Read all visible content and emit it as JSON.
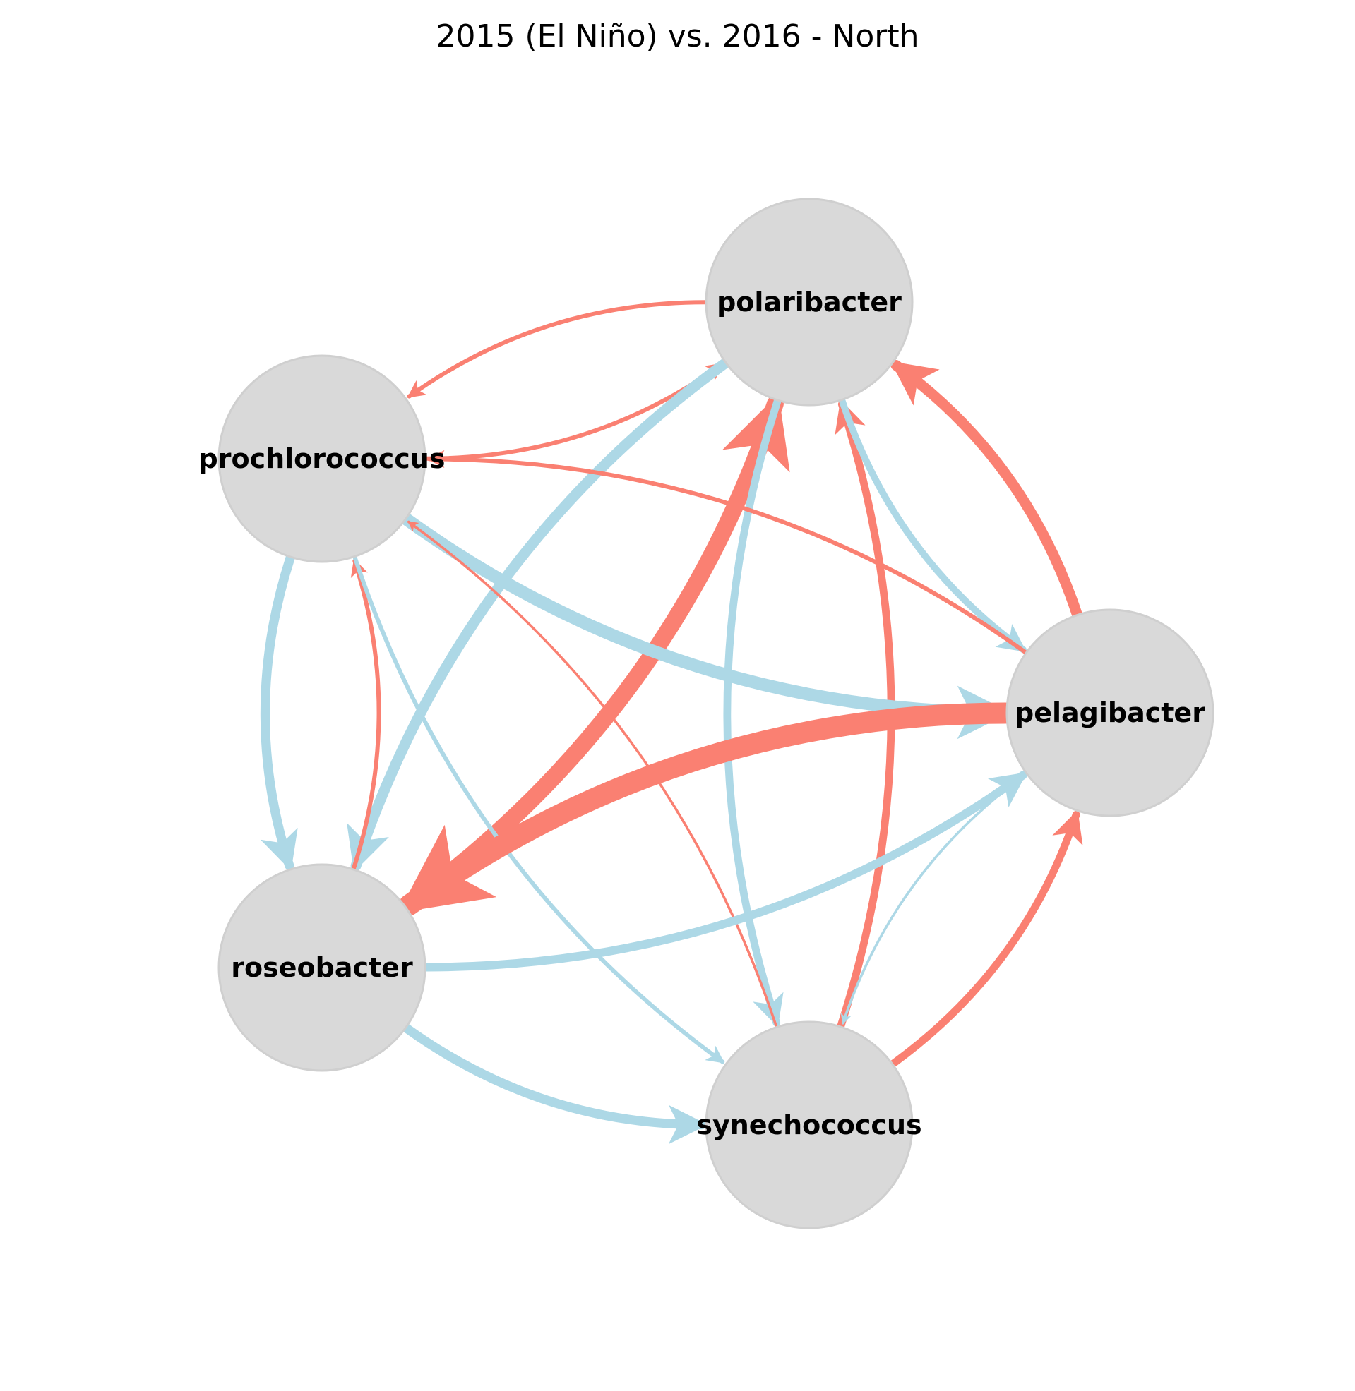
{
  "title": "2015 (El Niño) vs. 2016 - North",
  "colors": {
    "node_fill": "#d9d9d9",
    "increase": "#fa8072",
    "decrease": "#add8e6",
    "text": "#000000"
  },
  "nodes": [
    {
      "id": "polaribacter",
      "label": "polaribacter"
    },
    {
      "id": "prochlorococcus",
      "label": "prochlorococcus"
    },
    {
      "id": "pelagibacter",
      "label": "pelagibacter"
    },
    {
      "id": "roseobacter",
      "label": "roseobacter"
    },
    {
      "id": "synechococcus",
      "label": "synechococcus"
    }
  ],
  "edges": [
    {
      "from": "polaribacter",
      "to": "prochlorococcus",
      "color": "increase",
      "weight": 1
    },
    {
      "from": "prochlorococcus",
      "to": "polaribacter",
      "color": "increase",
      "weight": 1
    },
    {
      "from": "polaribacter",
      "to": "roseobacter",
      "color": "decrease",
      "weight": 2.5
    },
    {
      "from": "roseobacter",
      "to": "polaribacter",
      "color": "increase",
      "weight": 4
    },
    {
      "from": "polaribacter",
      "to": "synechococcus",
      "color": "decrease",
      "weight": 1.8
    },
    {
      "from": "synechococcus",
      "to": "polaribacter",
      "color": "increase",
      "weight": 1.8
    },
    {
      "from": "polaribacter",
      "to": "pelagibacter",
      "color": "decrease",
      "weight": 1.6
    },
    {
      "from": "pelagibacter",
      "to": "polaribacter",
      "color": "increase",
      "weight": 2.5
    },
    {
      "from": "prochlorococcus",
      "to": "pelagibacter",
      "color": "decrease",
      "weight": 3
    },
    {
      "from": "pelagibacter",
      "to": "prochlorococcus",
      "color": "increase",
      "weight": 1
    },
    {
      "from": "prochlorococcus",
      "to": "roseobacter",
      "color": "decrease",
      "weight": 2.2
    },
    {
      "from": "roseobacter",
      "to": "prochlorococcus",
      "color": "increase",
      "weight": 1
    },
    {
      "from": "prochlorococcus",
      "to": "synechococcus",
      "color": "decrease",
      "weight": 1
    },
    {
      "from": "synechococcus",
      "to": "prochlorococcus",
      "color": "increase",
      "weight": 0.6
    },
    {
      "from": "pelagibacter",
      "to": "roseobacter",
      "color": "increase",
      "weight": 5
    },
    {
      "from": "roseobacter",
      "to": "pelagibacter",
      "color": "decrease",
      "weight": 2
    },
    {
      "from": "pelagibacter",
      "to": "synechococcus",
      "color": "decrease",
      "weight": 0.6
    },
    {
      "from": "synechococcus",
      "to": "pelagibacter",
      "color": "increase",
      "weight": 1.8
    },
    {
      "from": "roseobacter",
      "to": "synechococcus",
      "color": "decrease",
      "weight": 2.2
    }
  ]
}
